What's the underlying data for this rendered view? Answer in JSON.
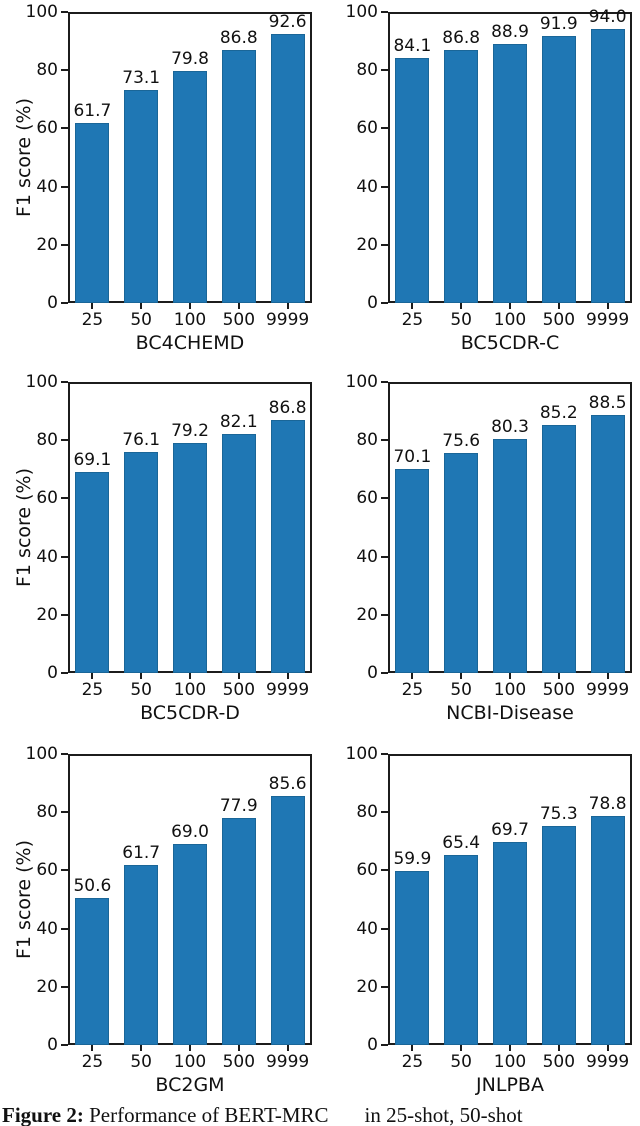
{
  "figure": {
    "caption": {
      "label": "Figure 2:",
      "text_before_subscript": "Performance of BERT-MRC",
      "text_after_subscript": "in 25-shot, 50-shot"
    }
  },
  "style": {
    "bar_color": "#1f77b4",
    "bar_edge_color": "#1a6698",
    "axis_color": "#1c1c1c",
    "text_color": "#111111"
  },
  "chart_data": [
    {
      "type": "bar",
      "xlabel": "BC4CHEMD",
      "ylabel": "F1 score (%)",
      "categories": [
        "25",
        "50",
        "100",
        "500",
        "9999"
      ],
      "values": [
        61.7,
        73.1,
        79.8,
        86.8,
        92.6
      ],
      "ylim": [
        0,
        100
      ],
      "yticks": [
        0,
        20,
        40,
        60,
        80,
        100
      ],
      "grid": false
    },
    {
      "type": "bar",
      "xlabel": "BC5CDR-C",
      "ylabel": "",
      "categories": [
        "25",
        "50",
        "100",
        "500",
        "9999"
      ],
      "values": [
        84.1,
        86.8,
        88.9,
        91.9,
        94.0
      ],
      "ylim": [
        0,
        100
      ],
      "yticks": [
        0,
        20,
        40,
        60,
        80,
        100
      ],
      "grid": false
    },
    {
      "type": "bar",
      "xlabel": "BC5CDR-D",
      "ylabel": "F1 score (%)",
      "categories": [
        "25",
        "50",
        "100",
        "500",
        "9999"
      ],
      "values": [
        69.1,
        76.1,
        79.2,
        82.1,
        86.8
      ],
      "ylim": [
        0,
        100
      ],
      "yticks": [
        0,
        20,
        40,
        60,
        80,
        100
      ],
      "grid": false
    },
    {
      "type": "bar",
      "xlabel": "NCBI-Disease",
      "ylabel": "",
      "categories": [
        "25",
        "50",
        "100",
        "500",
        "9999"
      ],
      "values": [
        70.1,
        75.6,
        80.3,
        85.2,
        88.5
      ],
      "ylim": [
        0,
        100
      ],
      "yticks": [
        0,
        20,
        40,
        60,
        80,
        100
      ],
      "grid": false
    },
    {
      "type": "bar",
      "xlabel": "BC2GM",
      "ylabel": "F1 score (%)",
      "categories": [
        "25",
        "50",
        "100",
        "500",
        "9999"
      ],
      "values": [
        50.6,
        61.7,
        69.0,
        77.9,
        85.6
      ],
      "ylim": [
        0,
        100
      ],
      "yticks": [
        0,
        20,
        40,
        60,
        80,
        100
      ],
      "grid": false
    },
    {
      "type": "bar",
      "xlabel": "JNLPBA",
      "ylabel": "",
      "categories": [
        "25",
        "50",
        "100",
        "500",
        "9999"
      ],
      "values": [
        59.9,
        65.4,
        69.7,
        75.3,
        78.8
      ],
      "ylim": [
        0,
        100
      ],
      "yticks": [
        0,
        20,
        40,
        60,
        80,
        100
      ],
      "grid": false
    }
  ]
}
